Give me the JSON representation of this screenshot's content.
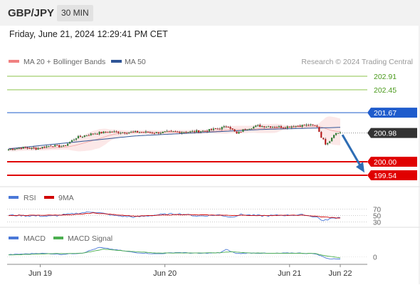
{
  "header": {
    "symbol": "GBP/JPY",
    "timeframe": "30 MIN",
    "datetime": "Friday, June 21, 2024 12:29:41 PM CET"
  },
  "legend": {
    "bollinger": "MA 20 + Bollinger Bands",
    "ma50": "MA 50",
    "credit": "Research © 2024 Trading Central",
    "rsi": "RSI",
    "rsi_ma": "9MA",
    "macd": "MACD",
    "macd_signal": "MACD Signal"
  },
  "colors": {
    "bollinger": "#f08080",
    "ma50": "#2f5597",
    "resistance": "#8bc34a",
    "support": "#e00000",
    "pivot": "#1f5ccc",
    "last": "#333333",
    "arrow": "#2e6db4",
    "rsi": "#4a78d8",
    "rsi_ma": "#d00000",
    "macd": "#4a78d8",
    "macd_signal": "#4caf50"
  },
  "chart_data": [
    {
      "type": "candlestick",
      "title": "GBP/JPY 30 MIN",
      "ylim": [
        199.3,
        203.1
      ],
      "x_ticks": [
        "Jun 19",
        "Jun 20",
        "Jun 21",
        "Jun 22"
      ],
      "levels": [
        {
          "label": "202.91",
          "value": 202.91,
          "kind": "resistance"
        },
        {
          "label": "202.45",
          "value": 202.45,
          "kind": "resistance"
        },
        {
          "label": "201.67",
          "value": 201.67,
          "kind": "pivot"
        },
        {
          "label": "200.98",
          "value": 200.98,
          "kind": "last"
        },
        {
          "label": "200.00",
          "value": 200.0,
          "kind": "support"
        },
        {
          "label": "199.54",
          "value": 199.54,
          "kind": "support"
        }
      ],
      "close_anchors": [
        [
          0,
          200.42
        ],
        [
          6,
          200.48
        ],
        [
          13,
          200.45
        ],
        [
          20,
          200.55
        ],
        [
          26,
          200.52
        ],
        [
          32,
          200.82
        ],
        [
          40,
          200.96
        ],
        [
          48,
          201.02
        ],
        [
          56,
          201.0
        ],
        [
          62,
          201.01
        ],
        [
          70,
          200.99
        ],
        [
          78,
          201.02
        ],
        [
          86,
          201.02
        ],
        [
          94,
          201.06
        ],
        [
          100,
          201.14
        ],
        [
          104,
          201.22
        ],
        [
          108,
          200.95
        ],
        [
          112,
          201.12
        ],
        [
          118,
          201.22
        ],
        [
          124,
          201.2
        ],
        [
          130,
          201.18
        ],
        [
          136,
          201.22
        ],
        [
          142,
          201.25
        ],
        [
          146,
          201.21
        ],
        [
          148,
          200.85
        ],
        [
          150,
          200.62
        ],
        [
          152,
          200.72
        ],
        [
          154,
          200.95
        ],
        [
          157,
          201.0
        ]
      ],
      "ma50_anchors": [
        [
          0,
          200.44
        ],
        [
          60,
          200.88
        ],
        [
          120,
          201.1
        ],
        [
          157,
          201.17
        ]
      ]
    },
    {
      "type": "line",
      "title": "RSI",
      "y_ticks": [
        70,
        50,
        30
      ],
      "ylim": [
        20,
        80
      ],
      "series": [
        {
          "name": "RSI",
          "anchors": [
            [
              0,
              51
            ],
            [
              20,
              48
            ],
            [
              30,
              55
            ],
            [
              40,
              62
            ],
            [
              50,
              50
            ],
            [
              60,
              45
            ],
            [
              70,
              52
            ],
            [
              80,
              56
            ],
            [
              90,
              48
            ],
            [
              100,
              52
            ],
            [
              105,
              45
            ],
            [
              110,
              53
            ],
            [
              120,
              49
            ],
            [
              130,
              51
            ],
            [
              140,
              52
            ],
            [
              146,
              45
            ],
            [
              149,
              33
            ],
            [
              152,
              40
            ],
            [
              157,
              45
            ]
          ]
        },
        {
          "name": "9MA",
          "anchors": [
            [
              0,
              50
            ],
            [
              30,
              52
            ],
            [
              40,
              58
            ],
            [
              60,
              48
            ],
            [
              80,
              53
            ],
            [
              100,
              51
            ],
            [
              120,
              50
            ],
            [
              140,
              51
            ],
            [
              148,
              46
            ],
            [
              157,
              42
            ]
          ]
        }
      ]
    },
    {
      "type": "line",
      "title": "MACD",
      "y_ticks": [
        0
      ],
      "ylim": [
        -0.45,
        1.4
      ],
      "series": [
        {
          "name": "MACD",
          "anchors": [
            [
              0,
              0.25
            ],
            [
              15,
              0.42
            ],
            [
              25,
              0.3
            ],
            [
              35,
              0.45
            ],
            [
              43,
              1.1
            ],
            [
              50,
              0.85
            ],
            [
              60,
              0.5
            ],
            [
              70,
              0.35
            ],
            [
              80,
              0.52
            ],
            [
              90,
              0.4
            ],
            [
              100,
              0.48
            ],
            [
              103,
              0.85
            ],
            [
              108,
              0.38
            ],
            [
              115,
              0.45
            ],
            [
              125,
              0.4
            ],
            [
              135,
              0.45
            ],
            [
              145,
              0.38
            ],
            [
              149,
              0.0
            ],
            [
              152,
              -0.25
            ],
            [
              157,
              -0.22
            ]
          ]
        },
        {
          "name": "MACD Signal",
          "anchors": [
            [
              0,
              0.22
            ],
            [
              20,
              0.38
            ],
            [
              35,
              0.42
            ],
            [
              45,
              0.9
            ],
            [
              55,
              0.7
            ],
            [
              70,
              0.45
            ],
            [
              85,
              0.45
            ],
            [
              100,
              0.48
            ],
            [
              105,
              0.6
            ],
            [
              115,
              0.45
            ],
            [
              130,
              0.42
            ],
            [
              145,
              0.4
            ],
            [
              150,
              0.12
            ],
            [
              157,
              -0.1
            ]
          ]
        }
      ]
    }
  ]
}
